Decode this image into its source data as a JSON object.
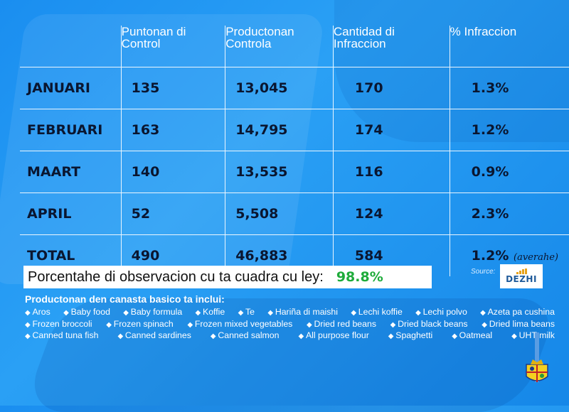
{
  "table": {
    "headers": [
      [
        "Puntonan di",
        "Control"
      ],
      [
        "Productonan",
        "Controla"
      ],
      [
        "Cantidad di",
        "Infraccion"
      ],
      [
        "% Infraccion",
        ""
      ]
    ],
    "rows": [
      {
        "month": "JANUARI",
        "puntonan": "135",
        "productonan": "13,045",
        "cantidad": "170",
        "pct": "1.3%"
      },
      {
        "month": "FEBRUARI",
        "puntonan": "163",
        "productonan": "14,795",
        "cantidad": "174",
        "pct": "1.2%"
      },
      {
        "month": "MAART",
        "puntonan": "140",
        "productonan": "13,535",
        "cantidad": "116",
        "pct": "0.9%"
      },
      {
        "month": "APRIL",
        "puntonan": "52",
        "productonan": "5,508",
        "cantidad": "124",
        "pct": "2.3%"
      },
      {
        "month": "TOTAL",
        "puntonan": "490",
        "productonan": "46,883",
        "cantidad": "584",
        "pct": "1.2%",
        "note": "(averahe)"
      }
    ]
  },
  "compliance": {
    "label": "Porcentahe di observacion cu ta cuadra cu ley:",
    "value": "98.8%"
  },
  "source": {
    "label": "Source:",
    "logo_text": "DEZHI",
    "logo_bar_color": "#e7a21a",
    "logo_text_color": "#1e5a9a"
  },
  "basket": {
    "title": "Productonan den canasta basico ta inclui:",
    "lines": [
      [
        "Aros",
        "Baby food",
        "Baby formula",
        "Koffie",
        "Te",
        "Hariña di maishi",
        "Lechi koffie",
        "Lechi polvo",
        "Azeta pa cushina"
      ],
      [
        "Frozen broccoli",
        "Frozen spinach",
        "Frozen mixed vegetables",
        "Dried red beans",
        "Dried black beans",
        "Dried lima beans"
      ],
      [
        "Canned tuna fish",
        "Canned sardines",
        "Canned salmon",
        "All purpose flour",
        "Spaghetti",
        "Oatmeal",
        "UHT milk"
      ]
    ],
    "bullet": "◆"
  },
  "emblem": {
    "icon": "coat-of-arms-icon"
  },
  "colors": {
    "background": "#1a8ef0",
    "value_text": "#0a1630",
    "compliance_value": "#1eab3a"
  }
}
